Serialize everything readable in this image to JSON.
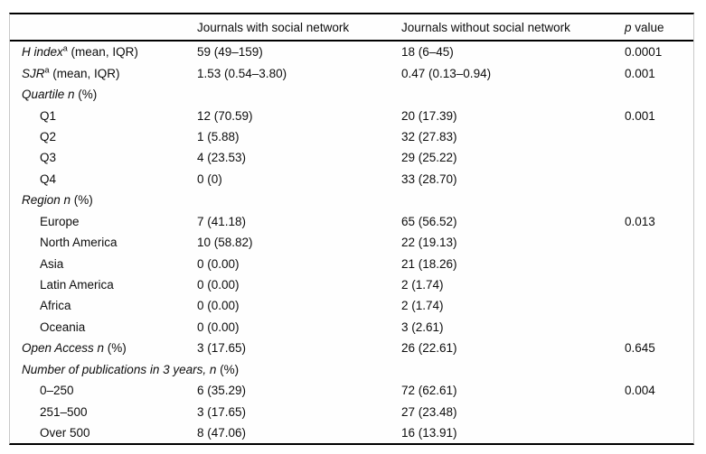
{
  "table": {
    "headers": {
      "col1": "",
      "col2": "Journals with social network",
      "col3": "Journals without social network"
    },
    "p_header": {
      "italic": "p",
      "rest": " value"
    },
    "rows": [
      {
        "indent": false,
        "label": [
          {
            "t": "H index",
            "i": true
          },
          {
            "t": "a",
            "sup": true
          },
          {
            "t": " (mean, IQR)"
          }
        ],
        "cells": [
          "59 (49–159)",
          "18 (6–45)",
          "0.0001"
        ]
      },
      {
        "indent": false,
        "label": [
          {
            "t": "SJR",
            "i": true
          },
          {
            "t": "a",
            "sup": true
          },
          {
            "t": " (mean, IQR)"
          }
        ],
        "cells": [
          "1.53 (0.54–3.80)",
          "0.47 (0.13–0.94)",
          "0.001"
        ]
      },
      {
        "indent": false,
        "label": [
          {
            "t": "Quartile n",
            "i": true
          },
          {
            "t": " (%)"
          }
        ],
        "cells": [
          "",
          "",
          ""
        ]
      },
      {
        "indent": true,
        "label": [
          {
            "t": "Q1"
          }
        ],
        "cells": [
          "12 (70.59)",
          "20 (17.39)",
          "0.001"
        ]
      },
      {
        "indent": true,
        "label": [
          {
            "t": "Q2"
          }
        ],
        "cells": [
          "1 (5.88)",
          "32 (27.83)",
          ""
        ]
      },
      {
        "indent": true,
        "label": [
          {
            "t": "Q3"
          }
        ],
        "cells": [
          "4 (23.53)",
          "29 (25.22)",
          ""
        ]
      },
      {
        "indent": true,
        "label": [
          {
            "t": "Q4"
          }
        ],
        "cells": [
          "0 (0)",
          "33 (28.70)",
          ""
        ]
      },
      {
        "indent": false,
        "label": [
          {
            "t": "Region n",
            "i": true
          },
          {
            "t": " (%)"
          }
        ],
        "cells": [
          "",
          "",
          ""
        ]
      },
      {
        "indent": true,
        "label": [
          {
            "t": "Europe"
          }
        ],
        "cells": [
          "7 (41.18)",
          "65 (56.52)",
          "0.013"
        ]
      },
      {
        "indent": true,
        "label": [
          {
            "t": "North America"
          }
        ],
        "cells": [
          "10 (58.82)",
          "22 (19.13)",
          ""
        ]
      },
      {
        "indent": true,
        "label": [
          {
            "t": "Asia"
          }
        ],
        "cells": [
          "0 (0.00)",
          "21 (18.26)",
          ""
        ]
      },
      {
        "indent": true,
        "label": [
          {
            "t": "Latin America"
          }
        ],
        "cells": [
          "0 (0.00)",
          "2 (1.74)",
          ""
        ]
      },
      {
        "indent": true,
        "label": [
          {
            "t": "Africa"
          }
        ],
        "cells": [
          "0 (0.00)",
          "2 (1.74)",
          ""
        ]
      },
      {
        "indent": true,
        "label": [
          {
            "t": "Oceania"
          }
        ],
        "cells": [
          "0 (0.00)",
          "3 (2.61)",
          ""
        ]
      },
      {
        "indent": false,
        "label": [
          {
            "t": "Open Access n",
            "i": true
          },
          {
            "t": " (%)"
          }
        ],
        "cells": [
          "3 (17.65)",
          "26 (22.61)",
          "0.645"
        ]
      },
      {
        "indent": false,
        "label": [
          {
            "t": "Number of publications in 3 years, n",
            "i": true
          },
          {
            "t": " (%)"
          }
        ],
        "cells": [
          "",
          "",
          ""
        ]
      },
      {
        "indent": true,
        "label": [
          {
            "t": "0–250"
          }
        ],
        "cells": [
          "6 (35.29)",
          "72 (62.61)",
          "0.004"
        ]
      },
      {
        "indent": true,
        "label": [
          {
            "t": "251–500"
          }
        ],
        "cells": [
          "3 (17.65)",
          "27 (23.48)",
          ""
        ]
      },
      {
        "indent": true,
        "label": [
          {
            "t": "Over 500"
          }
        ],
        "cells": [
          "8 (47.06)",
          "16 (13.91)",
          ""
        ]
      }
    ]
  }
}
